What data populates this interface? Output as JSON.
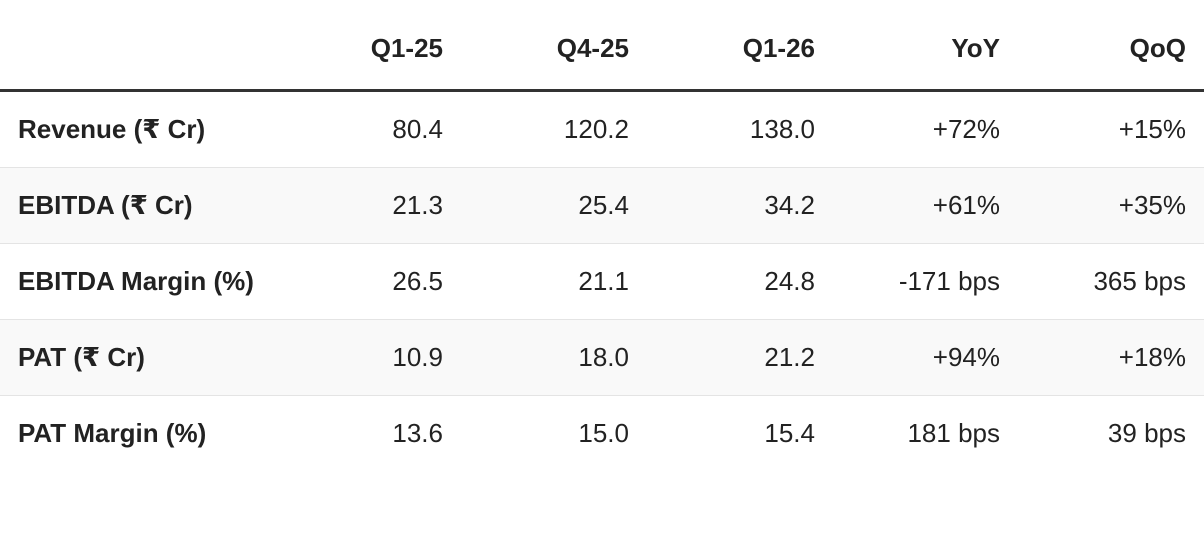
{
  "table": {
    "header": [
      "Q1-25",
      "Q4-25",
      "Q1-26",
      "YoY",
      "QoQ"
    ],
    "rows": [
      [
        "Revenue (₹ Cr)",
        "80.4",
        "120.2",
        "138.0",
        "+72%",
        "+15%"
      ],
      [
        "EBITDA (₹ Cr)",
        "21.3",
        "25.4",
        "34.2",
        "+61%",
        "+35%"
      ],
      [
        "EBITDA Margin (%)",
        "26.5",
        "21.1",
        "24.8",
        "-171 bps",
        "365 bps"
      ],
      [
        "PAT (₹ Cr)",
        "10.9",
        "18.0",
        "21.2",
        "+94%",
        "+18%"
      ],
      [
        "PAT Margin (%)",
        "13.6",
        "15.0",
        "15.4",
        "181 bps",
        "39 bps"
      ]
    ]
  }
}
